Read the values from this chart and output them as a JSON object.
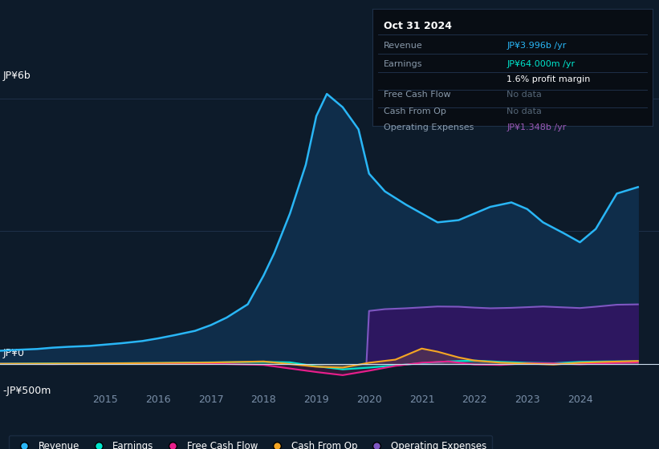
{
  "bg_color": "#0d1b2a",
  "chart_bg": "#0d1b2a",
  "grid_color": "#1e3048",
  "title_text": "Oct 31 2024",
  "ylabel_top": "JP¥6b",
  "ylabel_zero": "JP¥0",
  "ylabel_neg": "-JP¥500m",
  "ylim": [
    -600,
    6700
  ],
  "xlim": [
    2013.0,
    2025.5
  ],
  "xticks": [
    2015,
    2016,
    2017,
    2018,
    2019,
    2020,
    2021,
    2022,
    2023,
    2024
  ],
  "revenue_color": "#29b6f6",
  "earnings_color": "#00e5cc",
  "fcf_color": "#e91e8c",
  "cashop_color": "#f5a623",
  "opex_color": "#7e57c2",
  "revenue_fill": "#0f2d4a",
  "opex_fill": "#2d1760",
  "revenue_x": [
    2013.0,
    2013.3,
    2013.7,
    2014.0,
    2014.3,
    2014.7,
    2015.0,
    2015.3,
    2015.7,
    2016.0,
    2016.3,
    2016.7,
    2017.0,
    2017.3,
    2017.7,
    2018.0,
    2018.2,
    2018.5,
    2018.8,
    2019.0,
    2019.2,
    2019.5,
    2019.8,
    2020.0,
    2020.3,
    2020.7,
    2021.0,
    2021.3,
    2021.7,
    2022.0,
    2022.3,
    2022.7,
    2023.0,
    2023.3,
    2023.7,
    2024.0,
    2024.3,
    2024.7,
    2025.1
  ],
  "revenue_y": [
    300,
    320,
    340,
    370,
    390,
    410,
    440,
    470,
    520,
    580,
    650,
    750,
    880,
    1050,
    1350,
    2000,
    2500,
    3400,
    4500,
    5600,
    6100,
    5800,
    5300,
    4300,
    3900,
    3600,
    3400,
    3200,
    3250,
    3400,
    3550,
    3650,
    3500,
    3200,
    2950,
    2750,
    3050,
    3850,
    3996
  ],
  "earnings_x": [
    2013.0,
    2014.0,
    2015.0,
    2016.0,
    2017.0,
    2018.0,
    2018.5,
    2019.0,
    2019.5,
    2020.0,
    2020.5,
    2021.0,
    2021.5,
    2022.0,
    2022.5,
    2023.0,
    2023.5,
    2024.0,
    2024.5,
    2025.1
  ],
  "earnings_y": [
    10,
    15,
    20,
    25,
    40,
    50,
    40,
    -50,
    -120,
    -80,
    -30,
    20,
    60,
    80,
    50,
    30,
    20,
    50,
    60,
    64
  ],
  "fcf_x": [
    2013.0,
    2014.0,
    2015.0,
    2016.0,
    2017.0,
    2018.0,
    2019.0,
    2019.5,
    2020.0,
    2020.5,
    2021.0,
    2021.5,
    2022.0,
    2022.5,
    2023.0,
    2023.5,
    2024.0,
    2024.5,
    2025.1
  ],
  "fcf_y": [
    5,
    0,
    10,
    15,
    10,
    -20,
    -180,
    -250,
    -150,
    -40,
    30,
    60,
    -10,
    -20,
    20,
    15,
    -5,
    20,
    40
  ],
  "cashop_x": [
    2013.0,
    2014.0,
    2015.0,
    2016.0,
    2017.0,
    2018.0,
    2019.0,
    2019.5,
    2020.0,
    2020.5,
    2021.0,
    2021.3,
    2021.7,
    2022.0,
    2022.5,
    2023.0,
    2023.5,
    2024.0,
    2024.5,
    2025.1
  ],
  "cashop_y": [
    5,
    10,
    15,
    25,
    35,
    60,
    -60,
    -80,
    30,
    100,
    350,
    280,
    150,
    80,
    30,
    10,
    -10,
    30,
    50,
    70
  ],
  "opex_x": [
    2019.95,
    2020.0,
    2020.3,
    2020.7,
    2021.0,
    2021.3,
    2021.7,
    2022.0,
    2022.3,
    2022.7,
    2023.0,
    2023.3,
    2023.7,
    2024.0,
    2024.3,
    2024.7,
    2025.1
  ],
  "opex_y": [
    0,
    1200,
    1240,
    1260,
    1280,
    1300,
    1295,
    1275,
    1260,
    1270,
    1285,
    1300,
    1280,
    1265,
    1295,
    1340,
    1348
  ],
  "legend_items": [
    "Revenue",
    "Earnings",
    "Free Cash Flow",
    "Cash From Op",
    "Operating Expenses"
  ],
  "legend_colors": [
    "#29b6f6",
    "#00e5cc",
    "#e91e8c",
    "#f5a623",
    "#7e57c2"
  ],
  "info_rows": [
    {
      "label": "Revenue",
      "value": "JP¥3.996b /yr",
      "value_color": "#29b6f6"
    },
    {
      "label": "Earnings",
      "value": "JP¥64.000m /yr",
      "value_color": "#00e5cc"
    },
    {
      "label": "",
      "value": "1.6% profit margin",
      "value_color": "#ffffff"
    },
    {
      "label": "Free Cash Flow",
      "value": "No data",
      "value_color": "#556677"
    },
    {
      "label": "Cash From Op",
      "value": "No data",
      "value_color": "#556677"
    },
    {
      "label": "Operating Expenses",
      "value": "JP¥1.348b /yr",
      "value_color": "#9b59b6"
    }
  ]
}
